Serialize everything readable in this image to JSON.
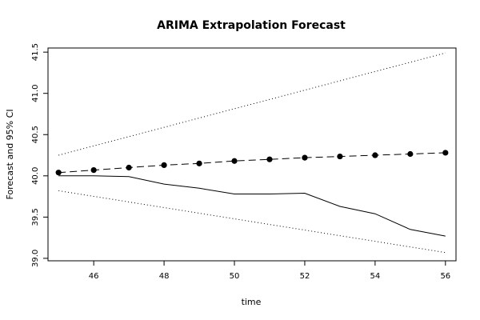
{
  "chart_data": {
    "type": "line",
    "title": "ARIMA Extrapolation Forecast",
    "xlabel": "time",
    "ylabel": "Forecast and 95% CI",
    "xlim": [
      44.7,
      56.3
    ],
    "ylim": [
      38.97,
      41.55
    ],
    "x_ticks": [
      "46",
      "48",
      "50",
      "52",
      "54",
      "56"
    ],
    "y_ticks": [
      "39.0",
      "39.5",
      "40.0",
      "40.5",
      "41.0",
      "41.5"
    ],
    "grid": false,
    "legend": "none",
    "series": [
      {
        "style": "solid",
        "color": "#000000",
        "x": [
          45,
          46,
          47,
          48,
          49,
          50,
          51,
          52,
          53,
          54,
          55,
          56
        ],
        "values": [
          40.0,
          40.0,
          39.99,
          39.9,
          39.85,
          39.78,
          39.78,
          39.79,
          39.63,
          39.54,
          39.35,
          39.27
        ]
      },
      {
        "style": "dashed-points",
        "color": "#000000",
        "x": [
          45,
          46,
          47,
          48,
          49,
          50,
          51,
          52,
          53,
          54,
          55,
          56
        ],
        "values": [
          40.04,
          40.07,
          40.1,
          40.13,
          40.15,
          40.18,
          40.2,
          40.22,
          40.235,
          40.25,
          40.265,
          40.28
        ]
      },
      {
        "style": "dotted",
        "color": "#000000",
        "x": [
          45,
          56
        ],
        "values": [
          40.25,
          41.49
        ]
      },
      {
        "style": "dotted",
        "color": "#000000",
        "x": [
          45,
          56
        ],
        "values": [
          39.82,
          39.07
        ]
      }
    ]
  }
}
